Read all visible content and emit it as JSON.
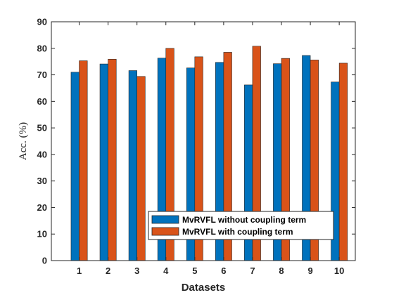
{
  "chart_data": {
    "type": "bar",
    "title": "",
    "xlabel": "Datasets",
    "ylabel": "Acc. (%)",
    "categories": [
      "1",
      "2",
      "3",
      "4",
      "5",
      "6",
      "7",
      "8",
      "9",
      "10"
    ],
    "ylim": [
      0,
      90
    ],
    "yticks": [
      "0",
      "10",
      "20",
      "30",
      "40",
      "50",
      "60",
      "70",
      "80",
      "90"
    ],
    "series": [
      {
        "name": "MvRVFL without coupling term",
        "color": "#0072BD",
        "values": [
          71.0,
          74.1,
          71.6,
          76.3,
          72.6,
          74.7,
          66.2,
          74.2,
          77.3,
          67.3
        ]
      },
      {
        "name": "MvRVFL with coupling term",
        "color": "#D95319",
        "values": [
          75.3,
          75.9,
          69.4,
          80.0,
          76.8,
          78.5,
          80.8,
          76.2,
          75.6,
          74.4
        ]
      }
    ],
    "grid": false,
    "legend_position": "bottom-right"
  }
}
